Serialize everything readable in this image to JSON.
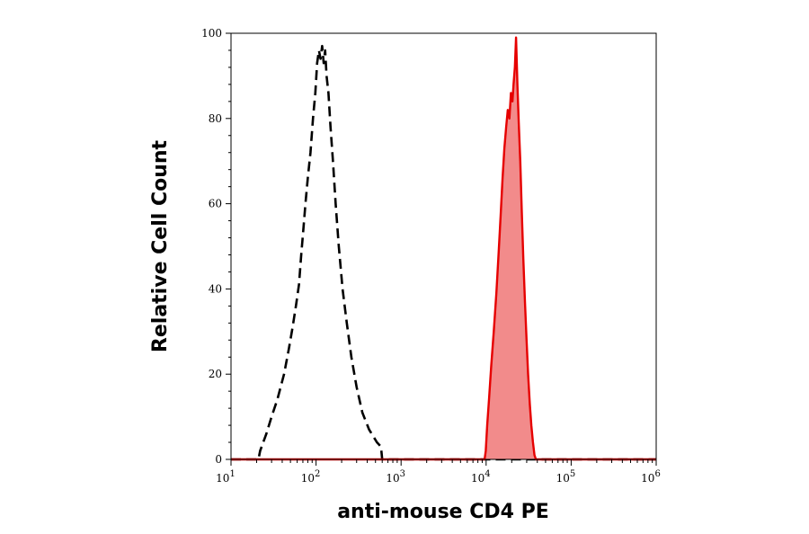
{
  "chart_data": {
    "type": "area",
    "xlabel": "anti-mouse CD4 PE",
    "ylabel": "Relative Cell Count",
    "x_scale": "log",
    "xlim": [
      10,
      1000000
    ],
    "ylim": [
      0,
      100
    ],
    "x_ticks": [
      {
        "base": "10",
        "exp": "1",
        "value": 10
      },
      {
        "base": "10",
        "exp": "2",
        "value": 100
      },
      {
        "base": "10",
        "exp": "3",
        "value": 1000
      },
      {
        "base": "10",
        "exp": "4",
        "value": 10000
      },
      {
        "base": "10",
        "exp": "5",
        "value": 100000
      },
      {
        "base": "10",
        "exp": "6",
        "value": 1000000
      }
    ],
    "y_ticks": [
      "0",
      "20",
      "40",
      "60",
      "80",
      "100"
    ],
    "grid": false,
    "series": [
      {
        "style": "dashed",
        "color": "#000000",
        "fill": "none",
        "points": [
          [
            10,
            0
          ],
          [
            21,
            0
          ],
          [
            22,
            2
          ],
          [
            26,
            6
          ],
          [
            30,
            10
          ],
          [
            35,
            14
          ],
          [
            42,
            20
          ],
          [
            48,
            26
          ],
          [
            53,
            31
          ],
          [
            58,
            36
          ],
          [
            63,
            41
          ],
          [
            67,
            48
          ],
          [
            71,
            54
          ],
          [
            75,
            60
          ],
          [
            80,
            66
          ],
          [
            86,
            72
          ],
          [
            92,
            80
          ],
          [
            98,
            86
          ],
          [
            103,
            93
          ],
          [
            108,
            96
          ],
          [
            113,
            94
          ],
          [
            118,
            97
          ],
          [
            123,
            93
          ],
          [
            128,
            96
          ],
          [
            133,
            90
          ],
          [
            140,
            86
          ],
          [
            148,
            78
          ],
          [
            158,
            70
          ],
          [
            170,
            60
          ],
          [
            185,
            50
          ],
          [
            205,
            40
          ],
          [
            230,
            32
          ],
          [
            260,
            24
          ],
          [
            300,
            17
          ],
          [
            350,
            11
          ],
          [
            420,
            7
          ],
          [
            520,
            4
          ],
          [
            580,
            3
          ],
          [
            600,
            0
          ],
          [
            1000000,
            0
          ]
        ]
      },
      {
        "style": "solid",
        "color": "#e60000",
        "fill": "#f28b8b",
        "points": [
          [
            10,
            0
          ],
          [
            9600,
            0
          ],
          [
            9900,
            2
          ],
          [
            10300,
            8
          ],
          [
            10800,
            14
          ],
          [
            11500,
            22
          ],
          [
            12300,
            30
          ],
          [
            13200,
            39
          ],
          [
            14000,
            48
          ],
          [
            14800,
            57
          ],
          [
            15600,
            66
          ],
          [
            16400,
            73
          ],
          [
            17200,
            78
          ],
          [
            18000,
            82
          ],
          [
            18800,
            80
          ],
          [
            19600,
            86
          ],
          [
            20400,
            84
          ],
          [
            21000,
            88
          ],
          [
            21800,
            92
          ],
          [
            22500,
            99
          ],
          [
            23300,
            88
          ],
          [
            24200,
            79
          ],
          [
            25200,
            70
          ],
          [
            26300,
            58
          ],
          [
            27400,
            47
          ],
          [
            28600,
            37
          ],
          [
            29900,
            28
          ],
          [
            31200,
            20
          ],
          [
            32600,
            13
          ],
          [
            34000,
            8
          ],
          [
            35500,
            4
          ],
          [
            37000,
            1
          ],
          [
            38500,
            0
          ],
          [
            1000000,
            0
          ]
        ]
      }
    ]
  }
}
